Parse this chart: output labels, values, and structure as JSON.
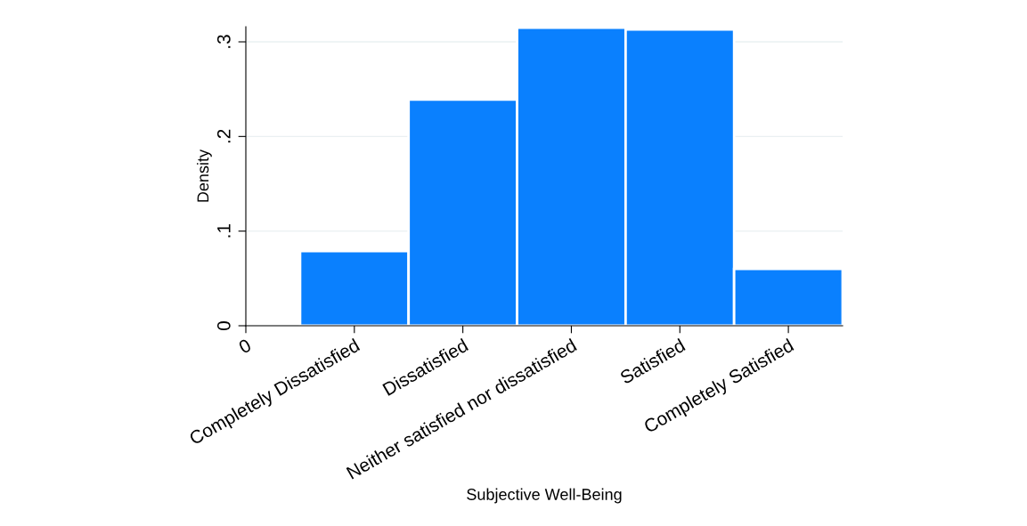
{
  "chart_data": {
    "type": "bar",
    "xlabel": "Subjective Well-Being",
    "ylabel": "Density",
    "categories": [
      "0",
      "Completely Dissatisfied",
      "Dissatisfied",
      "Neither satisfied nor dissatisfied",
      "Satisfied",
      "Completely Satisfied"
    ],
    "values": [
      null,
      0.079,
      0.239,
      0.315,
      0.313,
      0.06
    ],
    "color": "#0a80fe",
    "ylim": [
      0,
      0.316
    ],
    "yticks": [
      0,
      {
        "value": 0.1,
        "label": ".1"
      },
      {
        "value": 0.2,
        "label": ".2"
      },
      {
        "value": 0.3,
        "label": ".3"
      }
    ],
    "grid": "y"
  }
}
